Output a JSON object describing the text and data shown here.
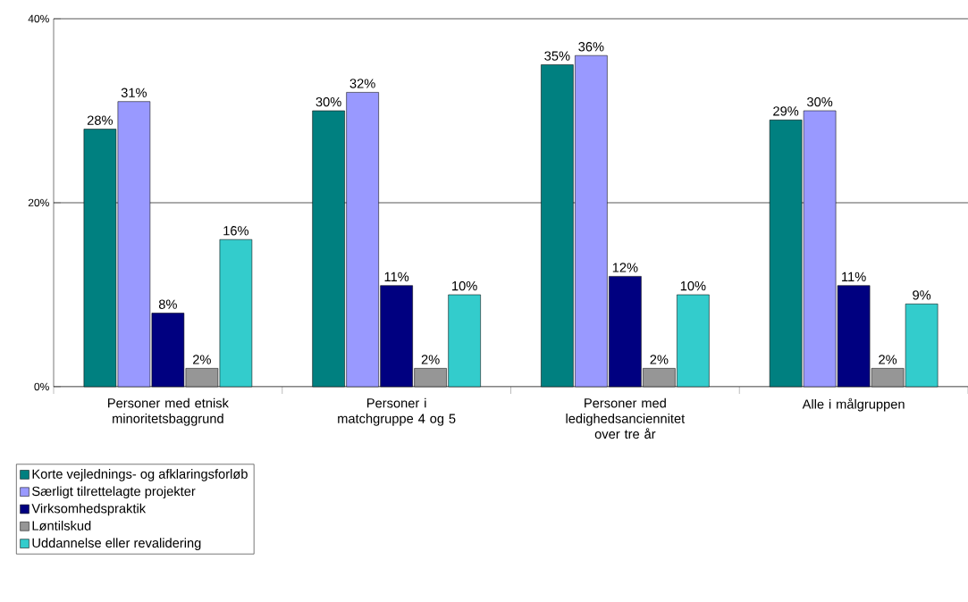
{
  "chart_data": {
    "type": "bar",
    "categories": [
      "Personer med etnisk minoritetsbaggrund",
      "Personer i matchgruppe 4 og 5",
      "Personer med ledighedsanciennitet over tre år",
      "Alle i målgruppen"
    ],
    "series": [
      {
        "name": "Korte vejlednings- og afklaringsforløb",
        "color": "#008080",
        "values": [
          28,
          30,
          35,
          29
        ],
        "value_labels": [
          "28%",
          "30%",
          "35%",
          "29%"
        ]
      },
      {
        "name": "Særligt tilrettelagte projekter",
        "color": "#9999ff",
        "values": [
          31,
          32,
          36,
          30
        ],
        "value_labels": [
          "31%",
          "32%",
          "36%",
          "30%"
        ]
      },
      {
        "name": "Virksomhedspraktik",
        "color": "#000080",
        "values": [
          8,
          11,
          12,
          11
        ],
        "value_labels": [
          "8%",
          "11%",
          "12%",
          "11%"
        ]
      },
      {
        "name": "Løntilskud",
        "color": "#969696",
        "values": [
          2,
          2,
          2,
          2
        ],
        "value_labels": [
          "2%",
          "2%",
          "2%",
          "2%"
        ]
      },
      {
        "name": "Uddannelse eller revalidering",
        "color": "#33cccc",
        "values": [
          16,
          10,
          10,
          9
        ],
        "value_labels": [
          "16%",
          "10%",
          "10%",
          "9%"
        ]
      }
    ],
    "ylim": [
      0,
      40
    ],
    "yticks": [
      {
        "value": 0,
        "label": "0%"
      },
      {
        "value": 20,
        "label": "20%"
      },
      {
        "value": 40,
        "label": "40%"
      }
    ],
    "grid": "y",
    "legend": "bottom left"
  }
}
